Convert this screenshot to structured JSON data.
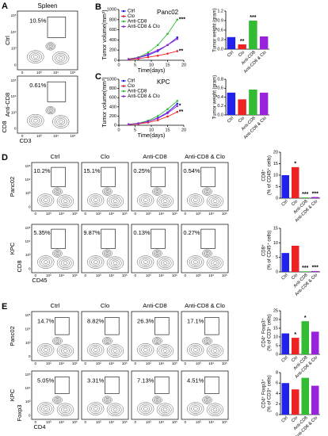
{
  "chart_data": [
    {
      "type": "line",
      "letter": "B",
      "title": "Panc02",
      "xlabel": "Time(days)",
      "ylabel": "Tumor volume(mm³)",
      "x": [
        3,
        6,
        9,
        12,
        15,
        18
      ],
      "xlim": [
        0,
        20
      ],
      "xticks": [
        0,
        5,
        10,
        15,
        20
      ],
      "ylim": [
        0,
        1000
      ],
      "yticks": [
        0,
        200,
        400,
        600,
        800,
        1000
      ],
      "series": [
        {
          "name": "Ctrl",
          "color": "#2222ee",
          "values": [
            20,
            50,
            100,
            180,
            300,
            450
          ]
        },
        {
          "name": "Clo",
          "color": "#ee2222",
          "values": [
            15,
            30,
            60,
            90,
            130,
            180
          ]
        },
        {
          "name": "Anti-CD8",
          "color": "#33bb33",
          "values": [
            25,
            60,
            150,
            300,
            520,
            800
          ]
        },
        {
          "name": "Anti-CD8 & Clo",
          "color": "#9922dd",
          "values": [
            20,
            50,
            120,
            200,
            300,
            420
          ]
        }
      ],
      "annotations": [
        {
          "text": "***",
          "series": "Anti-CD8"
        },
        {
          "text": "**",
          "series": "Clo"
        }
      ]
    },
    {
      "type": "bar",
      "ylabel": [
        "Tumor weight (gram)"
      ],
      "categories": [
        "Ctrl",
        "Clo",
        "Anti-CD8",
        "Anti-CD8 & Clo"
      ],
      "values": [
        0.38,
        0.15,
        0.9,
        0.4
      ],
      "colors": [
        "#2222ee",
        "#ee2222",
        "#33bb33",
        "#9922dd"
      ],
      "ylim": [
        0,
        1.2
      ],
      "yticks": [
        {
          "value": 0,
          "label": "0.0"
        },
        {
          "value": 0.3,
          "label": "0.3"
        },
        {
          "value": 0.6,
          "label": "0.6"
        },
        {
          "value": 0.9,
          "label": "0.9"
        },
        {
          "value": 1.2,
          "label": "1.2"
        }
      ],
      "annotations": [
        {
          "text": "**",
          "category": "Clo"
        },
        {
          "text": "***",
          "category": "Anti-CD8"
        }
      ]
    },
    {
      "type": "line",
      "letter": "C",
      "title": "KPC",
      "xlabel": "Time(days)",
      "ylabel": "Tumor volume(mm³)",
      "x": [
        3,
        6,
        9,
        12,
        15,
        18
      ],
      "xlim": [
        0,
        20
      ],
      "xticks": [
        0,
        5,
        10,
        15,
        20
      ],
      "ylim": [
        0,
        1000
      ],
      "yticks": [
        0,
        200,
        400,
        600,
        800,
        1000
      ],
      "series": [
        {
          "name": "Ctrl",
          "color": "#2222ee",
          "values": [
            20,
            40,
            80,
            160,
            280,
            470
          ]
        },
        {
          "name": "Clo",
          "color": "#ee2222",
          "values": [
            15,
            30,
            60,
            110,
            190,
            290
          ]
        },
        {
          "name": "Anti-CD8",
          "color": "#33bb33",
          "values": [
            20,
            45,
            100,
            200,
            350,
            530
          ]
        },
        {
          "name": "Anti-CD8 & Clo",
          "color": "#9922dd",
          "values": [
            20,
            40,
            80,
            150,
            260,
            420
          ]
        }
      ],
      "annotations": [
        {
          "text": "*",
          "series": "Anti-CD8 & Clo"
        },
        {
          "text": "**",
          "series": "Clo"
        }
      ]
    },
    {
      "type": "bar",
      "ylabel": [
        "Tumor weight (gram)"
      ],
      "categories": [
        "Ctrl",
        "Clo",
        "Anti-CD8",
        "Anti-CD8 & Clo"
      ],
      "values": [
        0.5,
        0.35,
        0.57,
        0.5
      ],
      "colors": [
        "#2222ee",
        "#ee2222",
        "#33bb33",
        "#9922dd"
      ],
      "ylim": [
        0,
        0.8
      ],
      "yticks": [
        {
          "value": 0,
          "label": "0.0"
        },
        {
          "value": 0.2,
          "label": "0.2"
        },
        {
          "value": 0.4,
          "label": "0.4"
        },
        {
          "value": 0.6,
          "label": "0.6"
        },
        {
          "value": 0.8,
          "label": "0.8"
        }
      ]
    },
    {
      "type": "bar",
      "ylabel": [
        "CD8⁺",
        "(% of CD45⁺ cells)"
      ],
      "categories": [
        "Ctrl",
        "Clo",
        "Anti-CD8",
        "Anti-CD8 & Clo"
      ],
      "values": [
        10,
        13.5,
        0.3,
        0.5
      ],
      "colors": [
        "#2222ee",
        "#ee2222",
        "#33bb33",
        "#9922dd"
      ],
      "ylim": [
        0,
        20
      ],
      "yticks": [
        0,
        5,
        10,
        15,
        20
      ],
      "annotations": [
        {
          "text": "*",
          "category": "Clo"
        },
        {
          "text": "***",
          "category": "Anti-CD8"
        },
        {
          "text": "***",
          "category": "Anti-CD8 & Clo"
        }
      ]
    },
    {
      "type": "bar",
      "ylabel": [
        "CD8⁺",
        "(% of CD45⁺ cells)"
      ],
      "categories": [
        "Ctrl",
        "Clo",
        "Anti-CD8",
        "Anti-CD8 & Clo"
      ],
      "values": [
        6.5,
        9,
        0.2,
        0.3
      ],
      "colors": [
        "#2222ee",
        "#ee2222",
        "#33bb33",
        "#9922dd"
      ],
      "ylim": [
        0,
        15
      ],
      "yticks": [
        0,
        5,
        10,
        15
      ],
      "annotations": [
        {
          "text": "***",
          "category": "Anti-CD8"
        },
        {
          "text": "***",
          "category": "Anti-CD8 & Clo"
        }
      ]
    },
    {
      "type": "bar",
      "ylabel": [
        "CD4⁺ Foxp3⁺",
        "(% of CD3⁺ cells)"
      ],
      "categories": [
        "Ctrl",
        "Clo",
        "Anti-CD8",
        "Anti-CD8 & Clo"
      ],
      "values": [
        12,
        9.5,
        19,
        13
      ],
      "colors": [
        "#2222ee",
        "#ee2222",
        "#33bb33",
        "#9922dd"
      ],
      "ylim": [
        0,
        25
      ],
      "yticks": [
        0,
        5,
        10,
        15,
        20,
        25
      ],
      "annotations": [
        {
          "text": "*",
          "category": "Clo"
        },
        {
          "text": "*",
          "category": "Anti-CD8"
        }
      ]
    },
    {
      "type": "bar",
      "ylabel": [
        "CD4⁺ Foxp3⁺",
        "(% of CD3⁺ cells)"
      ],
      "categories": [
        "Ctrl",
        "Clo",
        "Anti-CD8",
        "Anti-CD8 & Clo"
      ],
      "values": [
        6,
        4.8,
        7,
        5.5
      ],
      "colors": [
        "#2222ee",
        "#ee2222",
        "#33bb33",
        "#9922dd"
      ],
      "ylim": [
        0,
        8
      ],
      "yticks": [
        0,
        2,
        4,
        6,
        8
      ]
    }
  ],
  "flow_ticks": [
    "0",
    "10³",
    "10⁴",
    "10⁵"
  ],
  "flow_panels": [
    {
      "letter": "A",
      "title": "Spleen",
      "ylabel": "CD8",
      "xlabel": "CD3",
      "rows": [
        {
          "label": "Ctrl",
          "values": [
            "10.5%"
          ]
        },
        {
          "label": "Anti-CD8",
          "values": [
            "0.61%"
          ]
        }
      ]
    },
    {
      "letter": "D",
      "ylabel": "CD8",
      "xlabel": "CD45",
      "columns": [
        "Ctrl",
        "Clo",
        "Anti-CD8",
        "Anti-CD8 & Clo"
      ],
      "rows": [
        {
          "label": "Panc02",
          "values": [
            "10.2%",
            "15.1%",
            "0.25%",
            "0.54%"
          ]
        },
        {
          "label": "KPC",
          "values": [
            "5.35%",
            "9.87%",
            "0.13%",
            "0.27%"
          ]
        }
      ]
    },
    {
      "letter": "E",
      "ylabel": "Foxp3",
      "xlabel": "CD4",
      "columns": [
        "Ctrl",
        "Clo",
        "Anti-CD8",
        "Anti-CD8 & Clo"
      ],
      "rows": [
        {
          "label": "Panc02",
          "values": [
            "14.7%",
            "8.82%",
            "26.3%",
            "17.1%"
          ]
        },
        {
          "label": "KPC",
          "values": [
            "5.05%",
            "3.31%",
            "7.13%",
            "4.51%"
          ]
        }
      ]
    }
  ]
}
